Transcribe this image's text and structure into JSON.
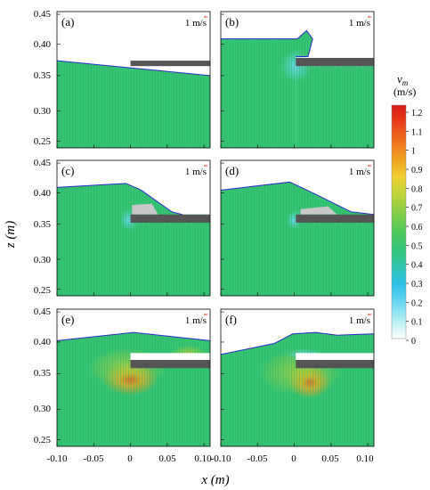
{
  "figure": {
    "y_axis_label": "z (m)",
    "x_axis_label": "x (m)",
    "y_ticks": [
      "0.45",
      "0.40",
      "0.35",
      "0.30",
      "0.25"
    ],
    "x_ticks": [
      "-0.10",
      "-0.05",
      "0",
      "0.05",
      "0.10"
    ],
    "scale_label": "1 m/s",
    "colors": {
      "water_green": "#35c472",
      "water_light": "#46cc7e",
      "plate": "#555555",
      "free_surface": "#2b2bd0",
      "blue_tint": "#6ad8f0",
      "red_tint": "#e8301a",
      "orange_tint": "#f0a020"
    }
  },
  "colorbar": {
    "title_var": "v",
    "title_sub": "m",
    "unit": "(m/s)",
    "ticks": [
      "1.2",
      "1.1",
      "1",
      "0.9",
      "0.8",
      "0.7",
      "0.6",
      "0.5",
      "0.4",
      "0.3",
      "0.2",
      "0.1",
      "0"
    ],
    "stops": [
      "#ffffff",
      "#b5f0f5",
      "#6ad8f0",
      "#2ec0ea",
      "#32c4b0",
      "#35c472",
      "#4ec85a",
      "#86cf45",
      "#bcd43a",
      "#f0d030",
      "#f0a020",
      "#f07020",
      "#e84018",
      "#d81818"
    ]
  },
  "panels": [
    {
      "label": "(a)"
    },
    {
      "label": "(b)"
    },
    {
      "label": "(c)"
    },
    {
      "label": "(d)"
    },
    {
      "label": "(e)"
    },
    {
      "label": "(f)"
    }
  ]
}
